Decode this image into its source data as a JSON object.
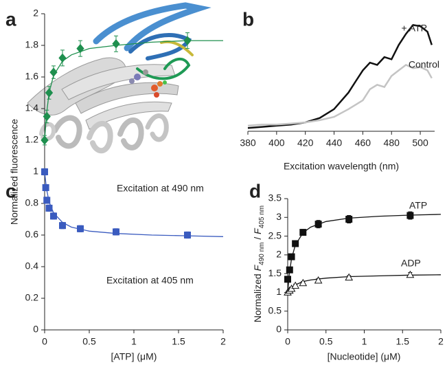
{
  "panels": [
    "a",
    "b",
    "c",
    "d"
  ],
  "chart_data": [
    {
      "type": "line",
      "xlabel": "Excitation wavelength (nm)",
      "x": [
        380,
        390,
        400,
        410,
        420,
        430,
        440,
        450,
        455,
        460,
        465,
        470,
        475,
        480,
        485,
        490,
        495,
        500,
        505,
        508
      ],
      "xlim": [
        380,
        510
      ],
      "xticks": [
        380,
        400,
        420,
        440,
        460,
        480,
        500
      ],
      "ylim": [
        0,
        100
      ],
      "series": [
        {
          "name": "+ ATP",
          "color": "#111111",
          "values": [
            3,
            4,
            5,
            6,
            8,
            12,
            20,
            35,
            45,
            55,
            62,
            60,
            67,
            65,
            78,
            88,
            96,
            95,
            90,
            78
          ]
        },
        {
          "name": "Control",
          "color": "#c4c4c4",
          "values": [
            5,
            6,
            6,
            7,
            8,
            10,
            13,
            20,
            24,
            28,
            38,
            42,
            40,
            50,
            55,
            60,
            57,
            58,
            55,
            48
          ]
        }
      ]
    },
    {
      "type": "scatter",
      "xlabel": "[ATP] (μM)",
      "ylabel": "Normalized fluorescence",
      "xlim": [
        0,
        2
      ],
      "ylim": [
        0,
        2
      ],
      "xticks": [
        0,
        0.5,
        1,
        1.5,
        2
      ],
      "yticks": [
        0,
        0.2,
        0.4,
        0.6,
        0.8,
        1,
        1.2,
        1.4,
        1.6,
        1.8,
        2
      ],
      "fit_x": [
        0,
        0.02,
        0.05,
        0.1,
        0.2,
        0.3,
        0.5,
        0.8,
        1.2,
        1.6,
        2.0
      ],
      "series": [
        {
          "name": "Excitation at 490 nm",
          "color": "#1e8f4e",
          "marker": "diamond",
          "filled": true,
          "x": [
            0,
            0.025,
            0.05,
            0.1,
            0.2,
            0.4,
            0.8,
            1.6
          ],
          "values": [
            1.2,
            1.35,
            1.5,
            1.63,
            1.72,
            1.78,
            1.81,
            1.83
          ],
          "errors": [
            0.03,
            0.04,
            0.04,
            0.04,
            0.05,
            0.05,
            0.05,
            0.05
          ],
          "fit_values": [
            1.2,
            1.36,
            1.5,
            1.61,
            1.7,
            1.74,
            1.78,
            1.8,
            1.82,
            1.83,
            1.83
          ]
        },
        {
          "name": "Excitation at 405 nm",
          "color": "#3a5bbf",
          "marker": "square",
          "filled": true,
          "x": [
            0,
            0.0125,
            0.025,
            0.05,
            0.1,
            0.2,
            0.4,
            0.8,
            1.6
          ],
          "values": [
            1.0,
            0.9,
            0.82,
            0.77,
            0.72,
            0.66,
            0.64,
            0.62,
            0.6
          ],
          "errors": [
            0.02,
            0.02,
            0.02,
            0.02,
            0.02,
            0.02,
            0.02,
            0.02,
            0.02
          ],
          "fit_values": [
            1.0,
            0.895,
            0.81,
            0.74,
            0.68,
            0.65,
            0.625,
            0.61,
            0.6,
            0.595,
            0.59
          ]
        }
      ]
    },
    {
      "type": "scatter",
      "xlabel": "[Nucleotide] (μM)",
      "ylabel_parts": [
        "Normalized ",
        "F",
        "490 nm",
        " / ",
        "F",
        "405 nm"
      ],
      "xlim": [
        0,
        2
      ],
      "ylim": [
        0,
        3.5
      ],
      "xticks": [
        0,
        0.5,
        1,
        1.5,
        2
      ],
      "yticks": [
        0,
        0.5,
        1,
        1.5,
        2,
        2.5,
        3,
        3.5
      ],
      "fit_x": [
        0,
        0.02,
        0.05,
        0.1,
        0.2,
        0.3,
        0.5,
        0.8,
        1.2,
        1.6,
        2.0
      ],
      "series": [
        {
          "name": "ATP",
          "color": "#111111",
          "marker": "square",
          "filled": true,
          "x": [
            0,
            0.025,
            0.05,
            0.1,
            0.2,
            0.4,
            0.8,
            1.6
          ],
          "values": [
            1.35,
            1.6,
            1.95,
            2.3,
            2.6,
            2.82,
            2.95,
            3.05
          ],
          "errors": [
            0.06,
            0.06,
            0.07,
            0.08,
            0.08,
            0.1,
            0.1,
            0.1
          ],
          "fit_values": [
            1.0,
            1.48,
            1.9,
            2.26,
            2.59,
            2.74,
            2.89,
            2.98,
            3.03,
            3.06,
            3.08
          ]
        },
        {
          "name": "ADP",
          "color": "#111111",
          "marker": "triangle",
          "filled": false,
          "x": [
            0,
            0.025,
            0.05,
            0.1,
            0.2,
            0.4,
            0.8,
            1.6
          ],
          "values": [
            1.0,
            1.05,
            1.1,
            1.18,
            1.25,
            1.32,
            1.4,
            1.47
          ],
          "errors": [
            0.03,
            0.03,
            0.03,
            0.04,
            0.04,
            0.05,
            0.05,
            0.06
          ],
          "fit_values": [
            1.0,
            1.06,
            1.13,
            1.2,
            1.29,
            1.33,
            1.38,
            1.42,
            1.44,
            1.46,
            1.47
          ]
        }
      ]
    }
  ]
}
